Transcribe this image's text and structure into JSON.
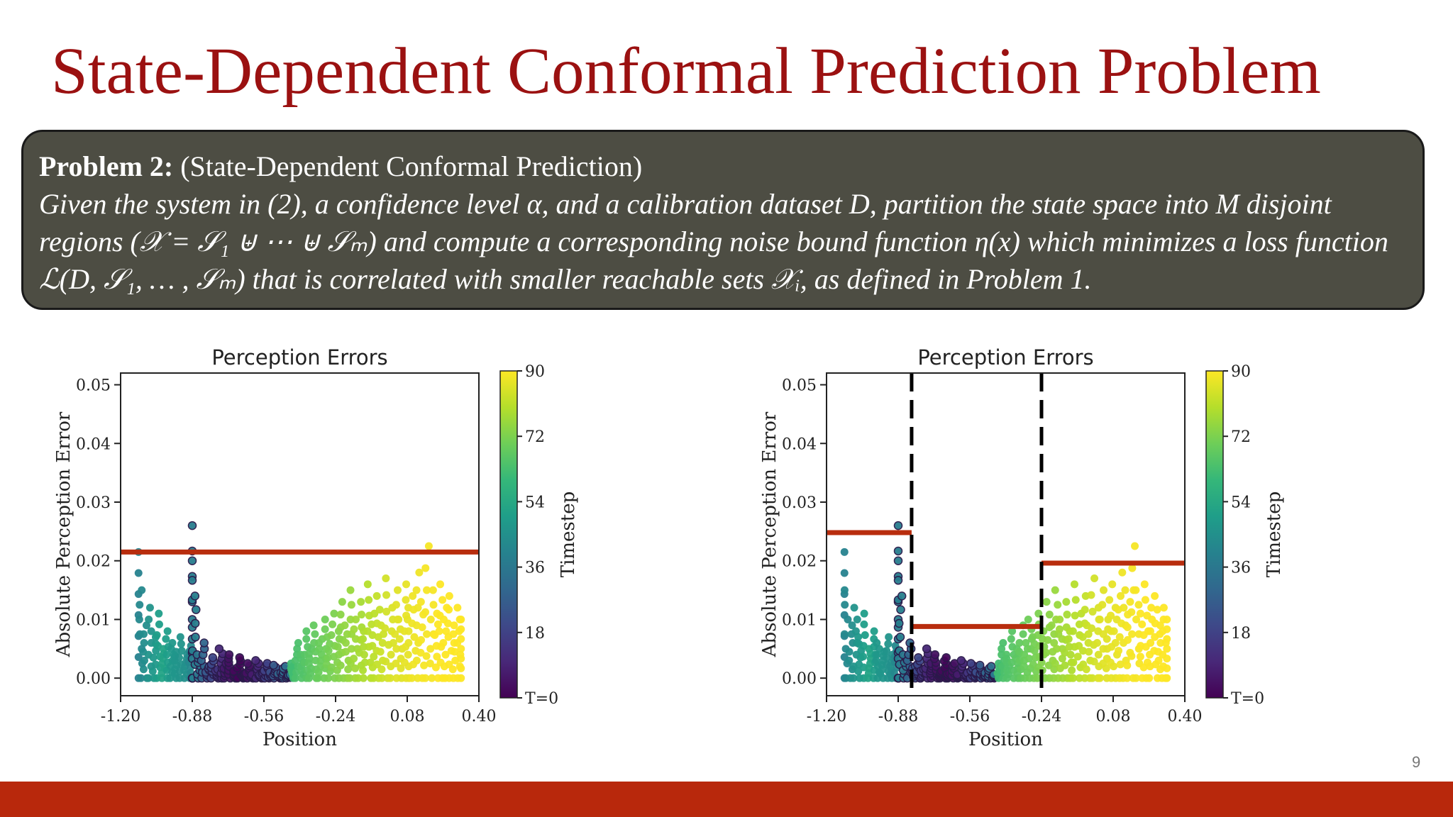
{
  "slide": {
    "title": "State-Dependent Conformal Prediction Problem",
    "page_number": "9",
    "colors": {
      "title": "#9b1111",
      "box_bg": "#4d4d43",
      "footer": "#b8280c",
      "bound_line": "#b82d0e"
    }
  },
  "problem": {
    "label": "Problem 2:",
    "subtitle": "(State-Dependent Conformal Prediction)",
    "line1": "Given the system in (2), a confidence level α, and a calibration dataset D, partition the state space into M disjoint",
    "line2": "regions (𝒳 = 𝒮₁ ⊎ ⋯ ⊎ 𝒮ₘ) and compute a corresponding noise bound  function η(x) which minimizes a loss function",
    "line3": "ℒ(D, 𝒮₁, … , 𝒮ₘ) that is correlated with smaller reachable sets 𝒳ᵢ, as defined in Problem 1."
  },
  "chart_data": [
    {
      "type": "scatter",
      "title": "Perception Errors",
      "xlabel": "Position",
      "ylabel": "Absolute Perception Error",
      "xlim": [
        -1.2,
        0.4
      ],
      "ylim": [
        -0.003,
        0.052
      ],
      "xticks": [
        "-1.20",
        "-0.88",
        "-0.56",
        "-0.24",
        "0.08",
        "0.40"
      ],
      "xtick_values": [
        -1.2,
        -0.88,
        -0.56,
        -0.24,
        0.08,
        0.4
      ],
      "yticks": [
        "0.00",
        "0.01",
        "0.02",
        "0.03",
        "0.04",
        "0.05"
      ],
      "ytick_values": [
        0,
        0.01,
        0.02,
        0.03,
        0.04,
        0.05
      ],
      "colorbar": {
        "label": "Timestep",
        "ticks": [
          "T=0",
          "18",
          "36",
          "54",
          "72",
          "90"
        ],
        "tick_values": [
          0,
          18,
          36,
          54,
          72,
          90
        ],
        "range": [
          0,
          90
        ],
        "colormap": "viridis"
      },
      "series": [
        {
          "points": [
            [
              -1.12,
              0.0215,
              40
            ],
            [
              -1.12,
              0.015,
              42
            ],
            [
              -1.1,
              0.009,
              44
            ],
            [
              -1.08,
              0.012,
              46
            ],
            [
              -1.06,
              0.007,
              48
            ],
            [
              -1.04,
              0.011,
              50
            ],
            [
              -1.02,
              0.005,
              52
            ],
            [
              -1.0,
              0.008,
              50
            ],
            [
              -0.98,
              0.006,
              48
            ],
            [
              -0.96,
              0.0045,
              47
            ],
            [
              -0.94,
              0.007,
              46
            ],
            [
              -0.92,
              0.004,
              45
            ],
            [
              -0.9,
              0.0055,
              42
            ],
            [
              -0.88,
              0.026,
              38
            ],
            [
              -0.88,
              0.02,
              38
            ],
            [
              -0.88,
              0.014,
              39
            ],
            [
              -0.86,
              0.004,
              36
            ],
            [
              -0.84,
              0.006,
              30
            ],
            [
              -0.82,
              0.002,
              25
            ],
            [
              -0.8,
              0.0035,
              20
            ],
            [
              -0.78,
              0.0015,
              14
            ],
            [
              -0.76,
              0.005,
              10
            ],
            [
              -0.74,
              0.0025,
              6
            ],
            [
              -0.72,
              0.004,
              4
            ],
            [
              -0.7,
              0.0012,
              2
            ],
            [
              -0.68,
              0.0035,
              1
            ],
            [
              -0.66,
              0.0008,
              2
            ],
            [
              -0.64,
              0.0025,
              4
            ],
            [
              -0.62,
              0.0006,
              7
            ],
            [
              -0.6,
              0.003,
              10
            ],
            [
              -0.58,
              0.0009,
              14
            ],
            [
              -0.56,
              0.0025,
              18
            ],
            [
              -0.54,
              0.001,
              22
            ],
            [
              -0.52,
              0.0022,
              26
            ],
            [
              -0.5,
              0.0009,
              30
            ],
            [
              -0.48,
              0.002,
              33
            ],
            [
              -0.46,
              0.0006,
              36
            ],
            [
              -0.44,
              0.0025,
              62
            ],
            [
              -0.42,
              0.006,
              64
            ],
            [
              -0.4,
              0.004,
              65
            ],
            [
              -0.38,
              0.008,
              66
            ],
            [
              -0.36,
              0.005,
              67
            ],
            [
              -0.34,
              0.009,
              68
            ],
            [
              -0.32,
              0.006,
              69
            ],
            [
              -0.3,
              0.01,
              70
            ],
            [
              -0.28,
              0.007,
              71
            ],
            [
              -0.26,
              0.011,
              72
            ],
            [
              -0.24,
              0.008,
              73
            ],
            [
              -0.22,
              0.013,
              74
            ],
            [
              -0.2,
              0.009,
              75
            ],
            [
              -0.18,
              0.015,
              76
            ],
            [
              -0.16,
              0.01,
              77
            ],
            [
              -0.14,
              0.013,
              78
            ],
            [
              -0.12,
              0.008,
              79
            ],
            [
              -0.1,
              0.016,
              80
            ],
            [
              -0.08,
              0.011,
              81
            ],
            [
              -0.06,
              0.014,
              82
            ],
            [
              -0.04,
              0.009,
              83
            ],
            [
              -0.02,
              0.017,
              84
            ],
            [
              0.0,
              0.012,
              85
            ],
            [
              0.02,
              0.015,
              86
            ],
            [
              0.04,
              0.01,
              86
            ],
            [
              0.06,
              0.016,
              87
            ],
            [
              0.08,
              0.012,
              87
            ],
            [
              0.1,
              0.014,
              88
            ],
            [
              0.12,
              0.018,
              88
            ],
            [
              0.14,
              0.013,
              89
            ],
            [
              0.16,
              0.0225,
              89
            ],
            [
              0.18,
              0.015,
              89
            ],
            [
              0.2,
              0.011,
              90
            ],
            [
              0.22,
              0.016,
              90
            ],
            [
              0.24,
              0.012,
              90
            ],
            [
              0.26,
              0.014,
              90
            ],
            [
              0.28,
              0.009,
              90
            ],
            [
              0.3,
              0.012,
              90
            ],
            [
              0.32,
              0.01,
              90
            ]
          ]
        }
      ],
      "bounds": [
        {
          "x": [
            -1.2,
            0.4
          ],
          "y": 0.0215
        }
      ],
      "partitions": []
    },
    {
      "type": "scatter",
      "title": "Perception Errors",
      "xlabel": "Position",
      "ylabel": "Absolute Perception Error",
      "xlim": [
        -1.2,
        0.4
      ],
      "ylim": [
        -0.003,
        0.052
      ],
      "xticks": [
        "-1.20",
        "-0.88",
        "-0.56",
        "-0.24",
        "0.08",
        "0.40"
      ],
      "xtick_values": [
        -1.2,
        -0.88,
        -0.56,
        -0.24,
        0.08,
        0.4
      ],
      "yticks": [
        "0.00",
        "0.01",
        "0.02",
        "0.03",
        "0.04",
        "0.05"
      ],
      "ytick_values": [
        0,
        0.01,
        0.02,
        0.03,
        0.04,
        0.05
      ],
      "colorbar": {
        "label": "Timestep",
        "ticks": [
          "T=0",
          "18",
          "36",
          "54",
          "72",
          "90"
        ],
        "tick_values": [
          0,
          18,
          36,
          54,
          72,
          90
        ],
        "range": [
          0,
          90
        ],
        "colormap": "viridis"
      },
      "series": [
        {
          "points": [
            [
              -1.12,
              0.0215,
              40
            ],
            [
              -1.12,
              0.015,
              42
            ],
            [
              -1.1,
              0.009,
              44
            ],
            [
              -1.08,
              0.012,
              46
            ],
            [
              -1.06,
              0.007,
              48
            ],
            [
              -1.04,
              0.011,
              50
            ],
            [
              -1.02,
              0.005,
              52
            ],
            [
              -1.0,
              0.008,
              50
            ],
            [
              -0.98,
              0.006,
              48
            ],
            [
              -0.96,
              0.0045,
              47
            ],
            [
              -0.94,
              0.007,
              46
            ],
            [
              -0.92,
              0.004,
              45
            ],
            [
              -0.9,
              0.0055,
              42
            ],
            [
              -0.88,
              0.026,
              38
            ],
            [
              -0.88,
              0.02,
              38
            ],
            [
              -0.88,
              0.014,
              39
            ],
            [
              -0.86,
              0.004,
              36
            ],
            [
              -0.84,
              0.006,
              30
            ],
            [
              -0.82,
              0.002,
              25
            ],
            [
              -0.8,
              0.0035,
              20
            ],
            [
              -0.78,
              0.0015,
              14
            ],
            [
              -0.76,
              0.005,
              10
            ],
            [
              -0.74,
              0.0025,
              6
            ],
            [
              -0.72,
              0.004,
              4
            ],
            [
              -0.7,
              0.0012,
              2
            ],
            [
              -0.68,
              0.0035,
              1
            ],
            [
              -0.66,
              0.0008,
              2
            ],
            [
              -0.64,
              0.0025,
              4
            ],
            [
              -0.62,
              0.0006,
              7
            ],
            [
              -0.6,
              0.003,
              10
            ],
            [
              -0.58,
              0.0009,
              14
            ],
            [
              -0.56,
              0.0025,
              18
            ],
            [
              -0.54,
              0.001,
              22
            ],
            [
              -0.52,
              0.0022,
              26
            ],
            [
              -0.5,
              0.0009,
              30
            ],
            [
              -0.48,
              0.002,
              33
            ],
            [
              -0.46,
              0.0006,
              36
            ],
            [
              -0.44,
              0.0025,
              62
            ],
            [
              -0.42,
              0.006,
              64
            ],
            [
              -0.4,
              0.004,
              65
            ],
            [
              -0.38,
              0.008,
              66
            ],
            [
              -0.36,
              0.005,
              67
            ],
            [
              -0.34,
              0.009,
              68
            ],
            [
              -0.32,
              0.006,
              69
            ],
            [
              -0.3,
              0.01,
              70
            ],
            [
              -0.28,
              0.007,
              71
            ],
            [
              -0.26,
              0.011,
              72
            ],
            [
              -0.24,
              0.008,
              73
            ],
            [
              -0.22,
              0.013,
              74
            ],
            [
              -0.2,
              0.009,
              75
            ],
            [
              -0.18,
              0.015,
              76
            ],
            [
              -0.16,
              0.01,
              77
            ],
            [
              -0.14,
              0.013,
              78
            ],
            [
              -0.12,
              0.008,
              79
            ],
            [
              -0.1,
              0.016,
              80
            ],
            [
              -0.08,
              0.011,
              81
            ],
            [
              -0.06,
              0.014,
              82
            ],
            [
              -0.04,
              0.009,
              83
            ],
            [
              -0.02,
              0.017,
              84
            ],
            [
              0.0,
              0.012,
              85
            ],
            [
              0.02,
              0.015,
              86
            ],
            [
              0.04,
              0.01,
              86
            ],
            [
              0.06,
              0.016,
              87
            ],
            [
              0.08,
              0.012,
              87
            ],
            [
              0.1,
              0.014,
              88
            ],
            [
              0.12,
              0.018,
              88
            ],
            [
              0.14,
              0.013,
              89
            ],
            [
              0.16,
              0.0225,
              89
            ],
            [
              0.18,
              0.015,
              89
            ],
            [
              0.2,
              0.011,
              90
            ],
            [
              0.22,
              0.016,
              90
            ],
            [
              0.24,
              0.012,
              90
            ],
            [
              0.26,
              0.014,
              90
            ],
            [
              0.28,
              0.009,
              90
            ],
            [
              0.3,
              0.012,
              90
            ],
            [
              0.32,
              0.01,
              90
            ]
          ]
        }
      ],
      "bounds": [
        {
          "x": [
            -1.2,
            -0.82
          ],
          "y": 0.0248
        },
        {
          "x": [
            -0.82,
            -0.24
          ],
          "y": 0.0088
        },
        {
          "x": [
            -0.24,
            0.4
          ],
          "y": 0.0196
        }
      ],
      "partitions": [
        -0.82,
        -0.24
      ]
    }
  ]
}
